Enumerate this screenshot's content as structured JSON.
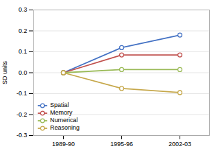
{
  "chart_data": {
    "type": "line",
    "categories": [
      "1989-90",
      "1995-96",
      "2002-03"
    ],
    "series": [
      {
        "name": "Spatial",
        "values": [
          0.0,
          0.12,
          0.18
        ],
        "color": "#4472C4",
        "marker": "circle"
      },
      {
        "name": "Memory",
        "values": [
          0.0,
          0.085,
          0.085
        ],
        "color": "#C0504D",
        "marker": "circle"
      },
      {
        "name": "Numerical",
        "values": [
          0.0,
          0.015,
          0.015
        ],
        "color": "#9BBB59",
        "marker": "circle"
      },
      {
        "name": "Reasoning",
        "values": [
          0.0,
          -0.075,
          -0.095
        ],
        "color": "#C6A84B",
        "marker": "circle"
      }
    ],
    "ylabel": "SD units",
    "ylim": [
      -0.3,
      0.3
    ],
    "yticks": [
      -0.3,
      -0.2,
      -0.1,
      {
        "value": 0,
        "label": "0.0"
      },
      0.1,
      0.2,
      0.3
    ],
    "grid": true,
    "legend": "lower left"
  }
}
